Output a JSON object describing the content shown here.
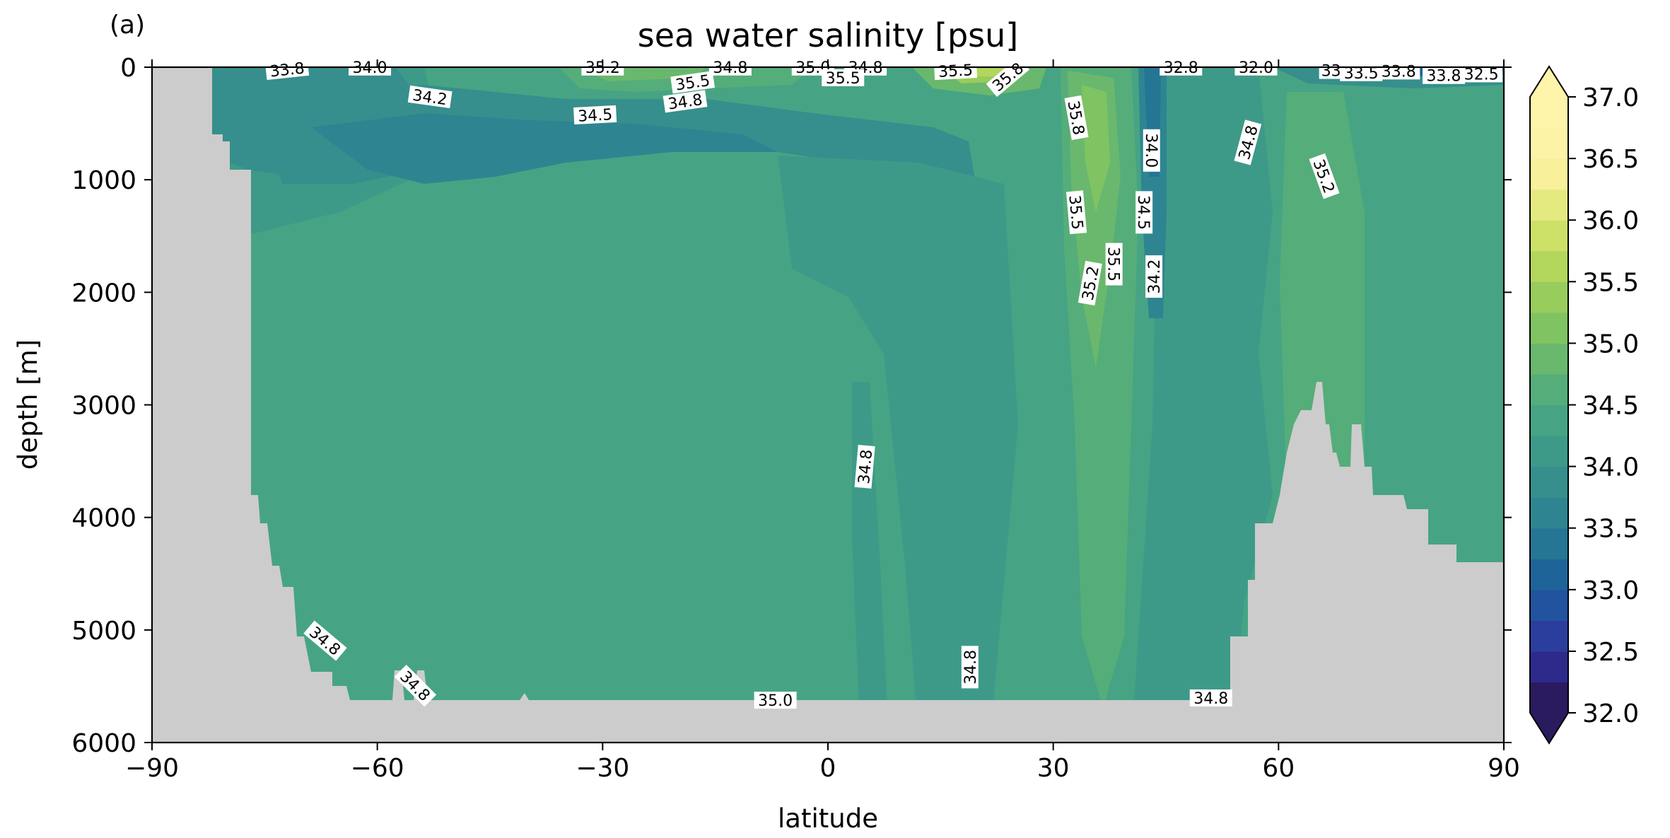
{
  "panel_label": "(a)",
  "chart_data": {
    "type": "heatmap",
    "title": "sea water salinity [psu]",
    "xlabel": "latitude",
    "ylabel": "depth [m]",
    "xlim": [
      -90,
      90
    ],
    "ylim": [
      6000,
      0
    ],
    "y_inverted": true,
    "x_ticks": [
      -90,
      -60,
      -30,
      0,
      30,
      60,
      90
    ],
    "x_tick_labels": [
      "−90",
      "−60",
      "−30",
      "0",
      "30",
      "60",
      "90"
    ],
    "y_ticks": [
      0,
      1000,
      2000,
      3000,
      4000,
      5000,
      6000
    ],
    "y_tick_labels": [
      "0",
      "1000",
      "2000",
      "3000",
      "4000",
      "5000",
      "6000"
    ],
    "grid": false,
    "colorbar": {
      "vmin": 32.0,
      "vmax": 37.0,
      "step": 0.25,
      "extend": "both",
      "ticks": [
        32.0,
        32.5,
        33.0,
        33.5,
        34.0,
        34.5,
        35.0,
        35.5,
        36.0,
        36.5,
        37.0
      ],
      "tick_labels": [
        "32.0",
        "32.5",
        "33.0",
        "33.5",
        "34.0",
        "34.5",
        "35.0",
        "35.5",
        "36.0",
        "36.5",
        "37.0"
      ],
      "colors": [
        "#2a1a5e",
        "#2d2a8c",
        "#2b3e9e",
        "#22539f",
        "#1e6499",
        "#257595",
        "#2e8591",
        "#368f8c",
        "#3e9a88",
        "#46a484",
        "#55ad7a",
        "#69b86e",
        "#7fc363",
        "#98cc5c",
        "#b3d65c",
        "#cde068",
        "#e4ea80",
        "#f8f09a",
        "#fdf3a6",
        "#fef4aa"
      ]
    },
    "land_color": "#cccccc",
    "contour_labels": [
      {
        "text": "33.8",
        "x": -72,
        "y": 25,
        "angle": -6
      },
      {
        "text": "34.0",
        "x": -61,
        "y": 5,
        "angle": 0
      },
      {
        "text": "34.2",
        "x": -53,
        "y": 270,
        "angle": 8
      },
      {
        "text": "35.2",
        "x": -30,
        "y": 5,
        "angle": 0
      },
      {
        "text": "34.5",
        "x": -31,
        "y": 430,
        "angle": -3
      },
      {
        "text": "35.5",
        "x": -18,
        "y": 140,
        "angle": -8
      },
      {
        "text": "34.8",
        "x": -19,
        "y": 310,
        "angle": -8
      },
      {
        "text": "34.8",
        "x": -13,
        "y": 5,
        "angle": 0
      },
      {
        "text": "35.0",
        "x": -2,
        "y": 5,
        "angle": 0
      },
      {
        "text": "34.8",
        "x": 5,
        "y": 5,
        "angle": 0
      },
      {
        "text": "35.5",
        "x": 2,
        "y": 100,
        "angle": 0
      },
      {
        "text": "35.5",
        "x": 17,
        "y": 35,
        "angle": -3
      },
      {
        "text": "35.8",
        "x": 24,
        "y": 90,
        "angle": -40
      },
      {
        "text": "35.8",
        "x": 33,
        "y": 450,
        "angle": 80
      },
      {
        "text": "35.5",
        "x": 33,
        "y": 1290,
        "angle": 85
      },
      {
        "text": "35.5",
        "x": 38,
        "y": 1750,
        "angle": 90
      },
      {
        "text": "35.2",
        "x": 35,
        "y": 1920,
        "angle": -80
      },
      {
        "text": "34.0",
        "x": 43,
        "y": 740,
        "angle": 90
      },
      {
        "text": "34.5",
        "x": 42,
        "y": 1290,
        "angle": 90
      },
      {
        "text": "34.2",
        "x": 43.5,
        "y": 1860,
        "angle": -90
      },
      {
        "text": "32.8",
        "x": 47,
        "y": 5,
        "angle": 0
      },
      {
        "text": "32.0",
        "x": 57,
        "y": 5,
        "angle": 0
      },
      {
        "text": "34.8",
        "x": 56,
        "y": 670,
        "angle": -75
      },
      {
        "text": "35.2",
        "x": 66,
        "y": 970,
        "angle": 70
      },
      {
        "text": "33",
        "x": 67,
        "y": 35,
        "angle": 0
      },
      {
        "text": "33.5",
        "x": 71,
        "y": 55,
        "angle": 0
      },
      {
        "text": "33.8",
        "x": 76,
        "y": 40,
        "angle": 0
      },
      {
        "text": "33.8",
        "x": 82,
        "y": 80,
        "angle": 0
      },
      {
        "text": "32.5",
        "x": 87,
        "y": 65,
        "angle": 0
      },
      {
        "text": "34.8",
        "x": -67,
        "y": 5100,
        "angle": 40
      },
      {
        "text": "34.8",
        "x": -55,
        "y": 5500,
        "angle": 45
      },
      {
        "text": "34.8",
        "x": 5,
        "y": 3550,
        "angle": -85
      },
      {
        "text": "34.8",
        "x": 19,
        "y": 5330,
        "angle": -90
      },
      {
        "text": "35.0",
        "x": -7,
        "y": 5630,
        "angle": 0
      },
      {
        "text": "34.8",
        "x": 51,
        "y": 5610,
        "angle": 0
      }
    ]
  }
}
